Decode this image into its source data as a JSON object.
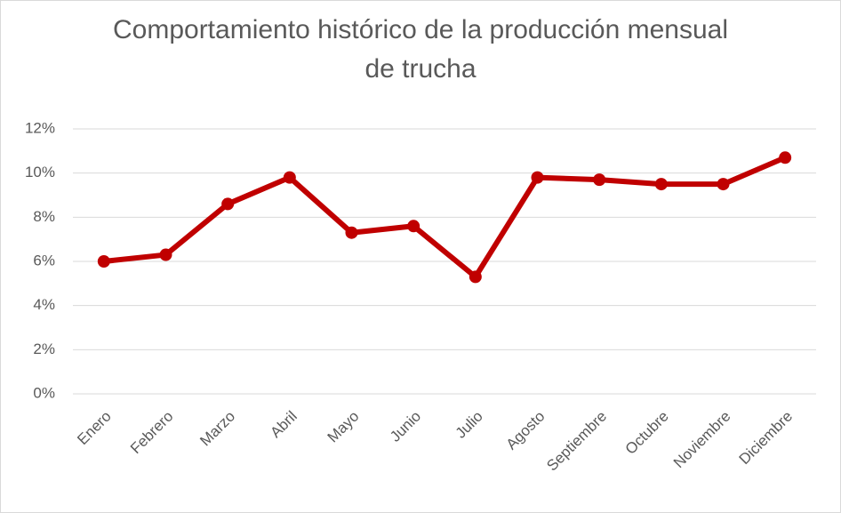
{
  "chart_data": {
    "type": "line",
    "title": "Comportamiento histórico de la producción mensual de trucha",
    "categories": [
      "Enero",
      "Febrero",
      "Marzo",
      "Abril",
      "Mayo",
      "Junio",
      "Julio",
      "Agosto",
      "Septiembre",
      "Octubre",
      "Noviembre",
      "Diciembre"
    ],
    "series": [
      {
        "color": "#c00000",
        "values": [
          6.0,
          6.3,
          8.6,
          9.8,
          7.3,
          7.6,
          5.3,
          9.8,
          9.7,
          9.5,
          9.5,
          10.7
        ]
      }
    ],
    "ylim": [
      0,
      12
    ],
    "yticks": [
      {
        "value": 0,
        "label": "0%"
      },
      {
        "value": 2,
        "label": "2%"
      },
      {
        "value": 4,
        "label": "4%"
      },
      {
        "value": 6,
        "label": "6%"
      },
      {
        "value": 8,
        "label": "8%"
      },
      {
        "value": 10,
        "label": "10%"
      },
      {
        "value": 12,
        "label": "12%"
      }
    ],
    "grid": true
  }
}
